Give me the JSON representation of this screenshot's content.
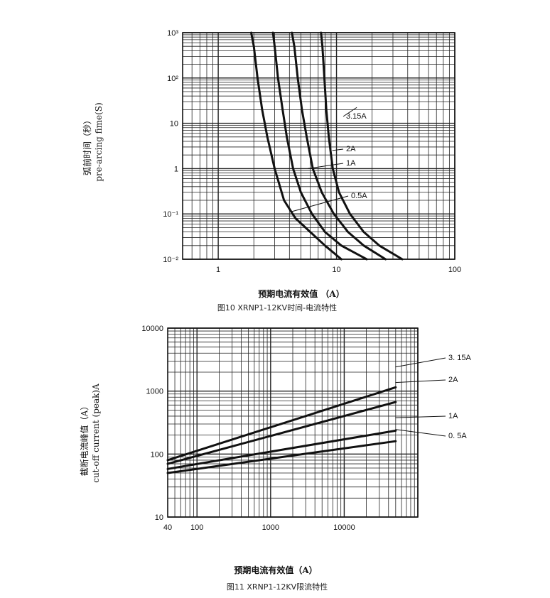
{
  "chart_data": [
    {
      "type": "line",
      "log_x": true,
      "log_y": true,
      "xlim": [
        0.5,
        100
      ],
      "ylim": [
        0.01,
        1000
      ],
      "xlabel": "预期电流有效值  （A）",
      "ylabel_cn": "弧前时间（秒）",
      "ylabel_en": "pre-arcing fime(S)",
      "caption": "图10 XRNP1-12KV时间-电流特性",
      "x_ticks": [
        {
          "value": 1,
          "label": "1"
        },
        {
          "value": 10,
          "label": "10"
        },
        {
          "value": 100,
          "label": "100"
        }
      ],
      "y_ticks": [
        {
          "value": 1000,
          "label": "10³"
        },
        {
          "value": 100,
          "label": "10²"
        },
        {
          "value": 10,
          "label": "10"
        },
        {
          "value": 1,
          "label": "1"
        },
        {
          "value": 0.1,
          "label": "10⁻¹"
        },
        {
          "value": 0.01,
          "label": "10⁻²"
        }
      ],
      "grid": true,
      "series": [
        {
          "name": "0.5A",
          "x": [
            1.9,
            2.0,
            2.15,
            2.35,
            2.6,
            3.0,
            3.6,
            4.5,
            6.0,
            8.0,
            11.0
          ],
          "y": [
            1000,
            500,
            100,
            20,
            5,
            1,
            0.2,
            0.08,
            0.04,
            0.02,
            0.01
          ]
        },
        {
          "name": "1A",
          "x": [
            2.9,
            3.0,
            3.2,
            3.5,
            3.8,
            4.3,
            5.0,
            6.2,
            8.0,
            11.0,
            18.0
          ],
          "y": [
            1000,
            500,
            100,
            20,
            5,
            1,
            0.3,
            0.1,
            0.04,
            0.02,
            0.01
          ]
        },
        {
          "name": "2A",
          "x": [
            4.2,
            4.4,
            4.7,
            5.1,
            5.6,
            6.3,
            7.5,
            9.5,
            12.5,
            17.0,
            26.0
          ],
          "y": [
            1000,
            500,
            100,
            20,
            5,
            1,
            0.3,
            0.1,
            0.04,
            0.02,
            0.01
          ]
        },
        {
          "name": "3.15A",
          "x": [
            7.4,
            7.6,
            7.9,
            8.2,
            8.6,
            9.3,
            10.5,
            13.0,
            17.0,
            23.0,
            36.0
          ],
          "y": [
            1000,
            500,
            100,
            20,
            5,
            1,
            0.3,
            0.1,
            0.04,
            0.02,
            0.01
          ]
        }
      ]
    },
    {
      "type": "line",
      "log_x": true,
      "log_y": true,
      "xlim": [
        40,
        100000
      ],
      "ylim": [
        10,
        10000
      ],
      "xlabel": "预期电流有效值（A）",
      "ylabel_cn": "截断电流峰值（A）",
      "ylabel_en": "cut-off current (peak)A",
      "caption": "图11 XRNP1-12KV限流特性",
      "x_ticks": [
        {
          "value": 40,
          "label": "40"
        },
        {
          "value": 100,
          "label": "100"
        },
        {
          "value": 1000,
          "label": "1000"
        },
        {
          "value": 10000,
          "label": "10000"
        }
      ],
      "y_ticks": [
        {
          "value": 10000,
          "label": "10000"
        },
        {
          "value": 1000,
          "label": "1000"
        },
        {
          "value": 100,
          "label": "100"
        },
        {
          "value": 10,
          "label": "10"
        }
      ],
      "grid": true,
      "series": [
        {
          "name": "3. 15A",
          "x": [
            40,
            50000
          ],
          "y": [
            80,
            1150
          ]
        },
        {
          "name": "2A",
          "x": [
            40,
            50000
          ],
          "y": [
            70,
            670
          ]
        },
        {
          "name": "1A",
          "x": [
            40,
            50000
          ],
          "y": [
            58,
            235
          ]
        },
        {
          "name": "0. 5A",
          "x": [
            40,
            50000
          ],
          "y": [
            50,
            160
          ]
        }
      ]
    }
  ]
}
